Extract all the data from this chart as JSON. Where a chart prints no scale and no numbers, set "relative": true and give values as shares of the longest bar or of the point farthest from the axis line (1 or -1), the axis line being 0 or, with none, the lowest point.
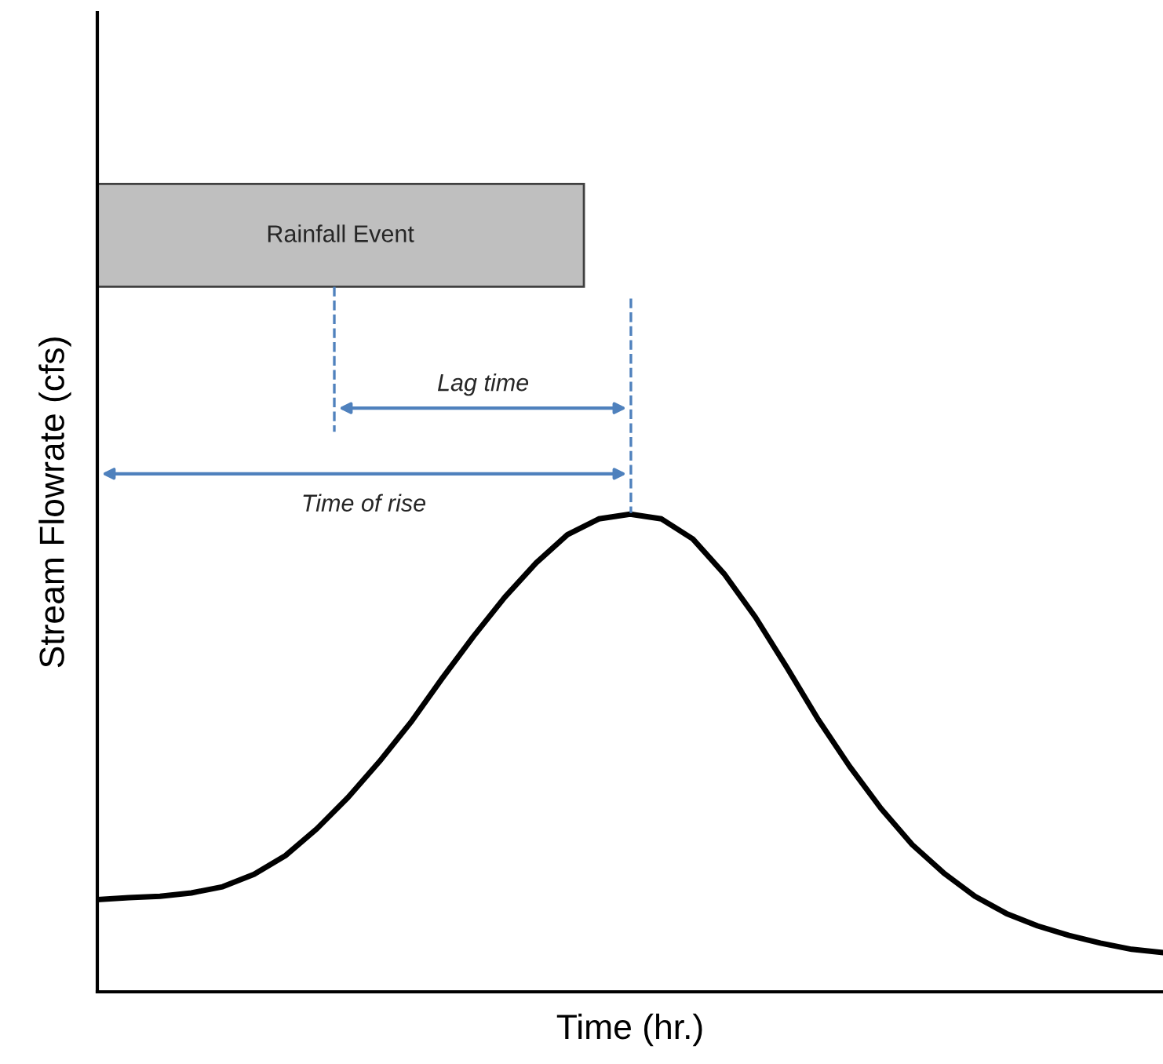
{
  "chart_data": {
    "type": "line",
    "relative": true,
    "xlabel": "Time (hr.)",
    "ylabel": "Stream Flowrate (cfs)",
    "categories": [
      null,
      null,
      null,
      null,
      null,
      null,
      null,
      null,
      null,
      null,
      null,
      null,
      null,
      null,
      null,
      null,
      null,
      null,
      null,
      null,
      null,
      null,
      null,
      null,
      null,
      null,
      null,
      null,
      null,
      null,
      null,
      null,
      null,
      null,
      null
    ],
    "series": [
      {
        "color": "#000000",
        "values": [
          0.193,
          0.197,
          0.2,
          0.207,
          0.22,
          0.246,
          0.285,
          0.341,
          0.407,
          0.482,
          0.564,
          0.656,
          0.744,
          0.826,
          0.898,
          0.957,
          0.99,
          1.0,
          0.99,
          0.948,
          0.875,
          0.784,
          0.679,
          0.57,
          0.472,
          0.384,
          0.308,
          0.249,
          0.2,
          0.164,
          0.138,
          0.118,
          0.102,
          0.089,
          0.082
        ]
      }
    ],
    "annotations": [
      "Rainfall Event",
      "Lag time",
      "Time of rise"
    ],
    "grid": false,
    "legend": false,
    "marker": "none",
    "line_style": "solid",
    "tick_labels": false
  }
}
